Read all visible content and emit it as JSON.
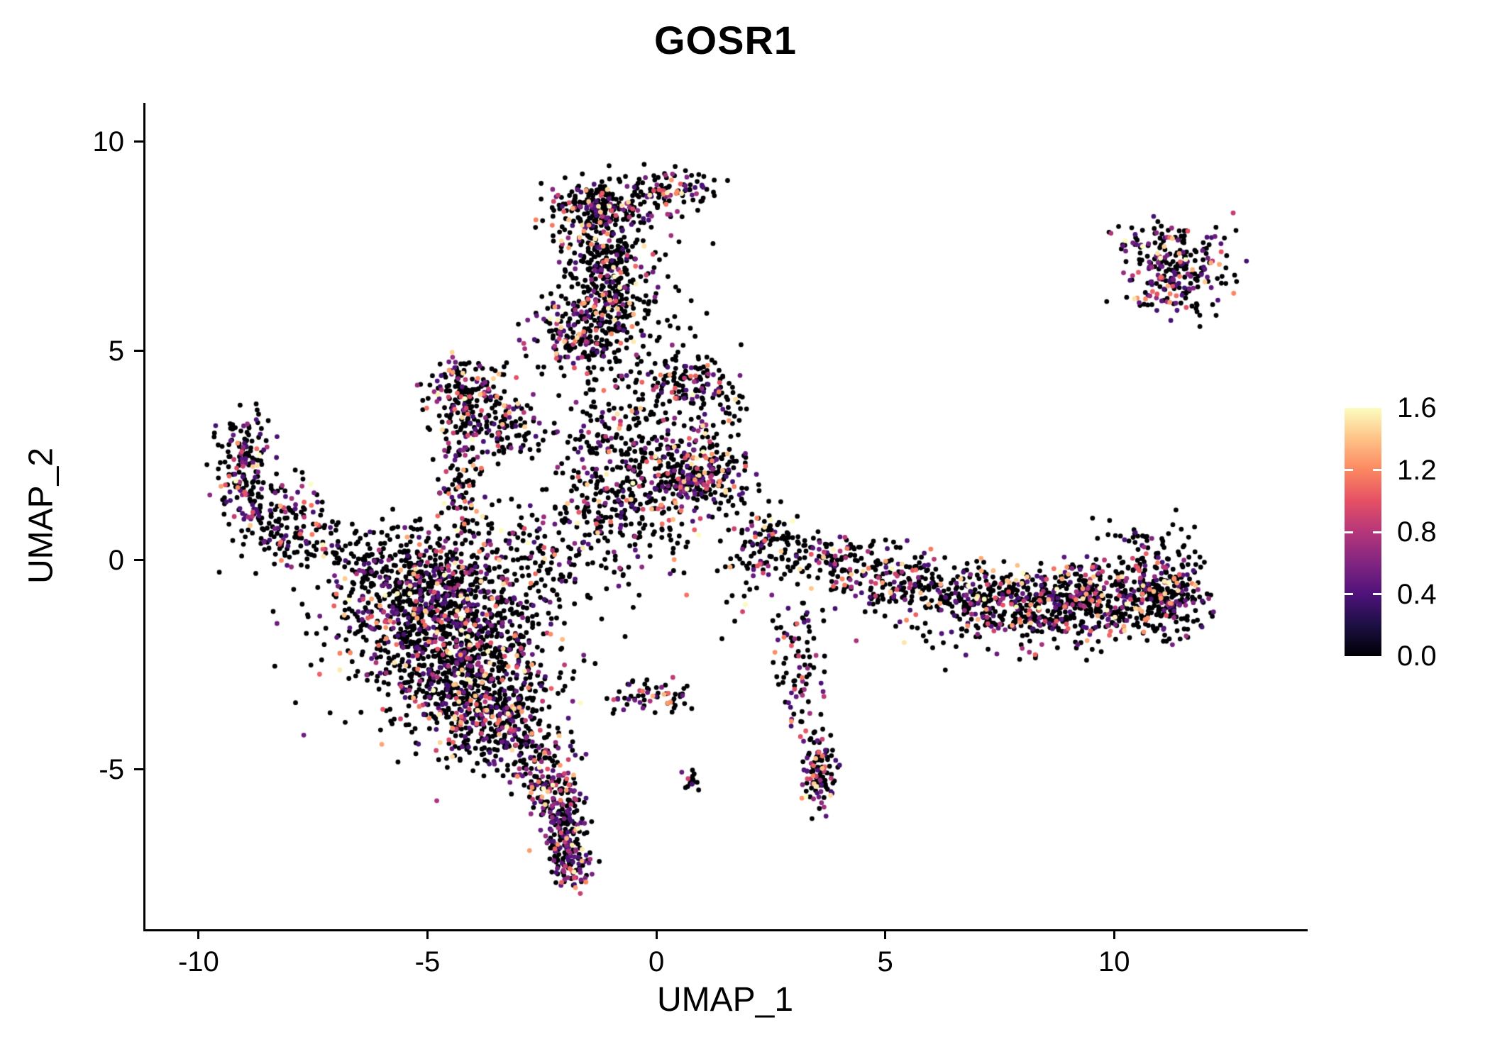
{
  "title": "GOSR1",
  "axes": {
    "x_label": "UMAP_1",
    "y_label": "UMAP_2",
    "x_ticks": [
      -10,
      -5,
      0,
      5,
      10
    ],
    "y_ticks": [
      -5,
      0,
      5,
      10
    ]
  },
  "colorbar": {
    "labels": [
      "1.6",
      "1.2",
      "0.8",
      "0.4",
      "0.0"
    ],
    "values": [
      1.6,
      1.2,
      0.8,
      0.4,
      0.0
    ],
    "tick_values": [
      0.4,
      0.8,
      1.2
    ]
  },
  "chart_data": {
    "type": "scatter",
    "title": "GOSR1",
    "xlabel": "UMAP_1",
    "ylabel": "UMAP_2",
    "x_range": [
      -11.16,
      14.18
    ],
    "y_range": [
      -8.82,
      10.93
    ],
    "grid": false,
    "legend_position": "right",
    "point_radius": 3.4,
    "seed": 12345,
    "color_scale": {
      "min": 0.0,
      "max": 1.6,
      "palette": "magma",
      "stops": [
        {
          "pos": 0.0,
          "color": "#000004"
        },
        {
          "pos": 0.125,
          "color": "#1c1044"
        },
        {
          "pos": 0.25,
          "color": "#4f127b"
        },
        {
          "pos": 0.375,
          "color": "#812581"
        },
        {
          "pos": 0.5,
          "color": "#b5367a"
        },
        {
          "pos": 0.625,
          "color": "#e55064"
        },
        {
          "pos": 0.75,
          "color": "#fb8761"
        },
        {
          "pos": 0.875,
          "color": "#fec287"
        },
        {
          "pos": 1.0,
          "color": "#fcfdbf"
        }
      ]
    },
    "clusters": [
      {
        "name": "top-cap",
        "cx": -1.25,
        "cy": 8.45,
        "sx": 0.55,
        "sy": 0.35,
        "n": 240,
        "pf": 0.3
      },
      {
        "name": "top-arm",
        "cx": 0.35,
        "cy": 8.8,
        "sx": 0.45,
        "sy": 0.25,
        "n": 90,
        "pf": 0.3
      },
      {
        "name": "col-upper",
        "cx": -1.15,
        "cy": 7.0,
        "sx": 0.45,
        "sy": 0.7,
        "n": 260,
        "pf": 0.3
      },
      {
        "name": "col-lower",
        "cx": -1.5,
        "cy": 5.4,
        "sx": 0.55,
        "sy": 0.55,
        "n": 260,
        "pf": 0.32
      },
      {
        "name": "col-right-sparse",
        "cx": -0.2,
        "cy": 6.4,
        "sx": 0.55,
        "sy": 0.9,
        "n": 70,
        "pf": 0.25
      },
      {
        "name": "topright",
        "cx": 11.35,
        "cy": 6.9,
        "sx": 0.55,
        "sy": 0.5,
        "n": 230,
        "pf": 0.4
      },
      {
        "name": "topright-fringe",
        "cx": 11.0,
        "cy": 7.7,
        "sx": 0.6,
        "sy": 0.25,
        "n": 30,
        "pf": 0.3
      },
      {
        "name": "left-vert",
        "cx": -9.0,
        "cy": 2.3,
        "sx": 0.3,
        "sy": 0.75,
        "n": 150,
        "pf": 0.32
      },
      {
        "name": "left-elbow",
        "cx": -8.3,
        "cy": 1.1,
        "sx": 0.5,
        "sy": 0.45,
        "n": 130,
        "pf": 0.3
      },
      {
        "name": "left-trail",
        "cx": -7.3,
        "cy": 0.35,
        "sx": 0.65,
        "sy": 0.35,
        "n": 70,
        "pf": 0.25
      },
      {
        "name": "main-1",
        "cx": -4.9,
        "cy": -1.1,
        "sx": 1.05,
        "sy": 0.75,
        "n": 650,
        "pf": 0.3
      },
      {
        "name": "main-2",
        "cx": -4.2,
        "cy": -2.7,
        "sx": 0.95,
        "sy": 0.75,
        "n": 600,
        "pf": 0.3
      },
      {
        "name": "main-3",
        "cx": -3.5,
        "cy": -4.0,
        "sx": 0.6,
        "sy": 0.5,
        "n": 260,
        "pf": 0.32
      },
      {
        "name": "main-top",
        "cx": -4.9,
        "cy": 0.0,
        "sx": 1.3,
        "sy": 0.5,
        "n": 240,
        "pf": 0.25
      },
      {
        "name": "main-halo",
        "cx": -4.4,
        "cy": -1.9,
        "sx": 1.9,
        "sy": 1.4,
        "n": 180,
        "pf": 0.22
      },
      {
        "name": "tri-1",
        "cx": -4.2,
        "cy": 4.2,
        "sx": 0.5,
        "sy": 0.3,
        "n": 120,
        "pf": 0.3
      },
      {
        "name": "tri-2",
        "cx": -3.85,
        "cy": 3.45,
        "sx": 0.6,
        "sy": 0.45,
        "n": 140,
        "pf": 0.3
      },
      {
        "name": "tri-trail",
        "cx": -4.3,
        "cy": 2.1,
        "sx": 0.22,
        "sy": 0.75,
        "n": 80,
        "pf": 0.3
      },
      {
        "name": "tri-tip",
        "cx": -3.0,
        "cy": 3.0,
        "sx": 0.45,
        "sy": 0.4,
        "n": 50,
        "pf": 0.28
      },
      {
        "name": "ctr-top",
        "cx": 0.6,
        "cy": 4.25,
        "sx": 0.45,
        "sy": 0.35,
        "n": 120,
        "pf": 0.3
      },
      {
        "name": "ctr-right",
        "cx": 0.95,
        "cy": 1.95,
        "sx": 0.5,
        "sy": 0.45,
        "n": 220,
        "pf": 0.38
      },
      {
        "name": "ctr-mid",
        "cx": -0.3,
        "cy": 1.7,
        "sx": 0.8,
        "sy": 0.75,
        "n": 260,
        "pf": 0.28
      },
      {
        "name": "ctr-upper",
        "cx": -0.7,
        "cy": 3.0,
        "sx": 0.65,
        "sy": 0.8,
        "n": 150,
        "pf": 0.25
      },
      {
        "name": "ctr-bridge",
        "cx": -1.8,
        "cy": 0.4,
        "sx": 1.0,
        "sy": 0.75,
        "n": 160,
        "pf": 0.25
      },
      {
        "name": "ctr-edge",
        "cx": 1.3,
        "cy": 3.3,
        "sx": 0.35,
        "sy": 0.7,
        "n": 60,
        "pf": 0.28
      },
      {
        "name": "tail-1",
        "cx": -2.4,
        "cy": -5.2,
        "sx": 0.35,
        "sy": 0.45,
        "n": 140,
        "pf": 0.38
      },
      {
        "name": "tail-2",
        "cx": -2.0,
        "cy": -6.5,
        "sx": 0.28,
        "sy": 0.55,
        "n": 170,
        "pf": 0.42
      },
      {
        "name": "tail-tip",
        "cx": -1.85,
        "cy": -7.3,
        "sx": 0.22,
        "sy": 0.25,
        "n": 60,
        "pf": 0.45
      },
      {
        "name": "line-low",
        "cx": -0.2,
        "cy": -3.3,
        "sx": 0.65,
        "sy": 0.22,
        "n": 60,
        "pf": 0.3
      },
      {
        "name": "band-1",
        "cx": 2.6,
        "cy": 0.45,
        "sx": 0.45,
        "sy": 0.4,
        "n": 90,
        "pf": 0.3
      },
      {
        "name": "band-2",
        "cx": 3.8,
        "cy": -0.05,
        "sx": 0.6,
        "sy": 0.35,
        "n": 120,
        "pf": 0.3
      },
      {
        "name": "band-3",
        "cx": 5.2,
        "cy": -0.5,
        "sx": 0.7,
        "sy": 0.35,
        "n": 130,
        "pf": 0.3
      },
      {
        "name": "band-4",
        "cx": 6.6,
        "cy": -0.8,
        "sx": 0.7,
        "sy": 0.35,
        "n": 150,
        "pf": 0.3
      },
      {
        "name": "band-5",
        "cx": 8.3,
        "cy": -1.0,
        "sx": 0.8,
        "sy": 0.45,
        "n": 330,
        "pf": 0.33
      },
      {
        "name": "band-6",
        "cx": 9.9,
        "cy": -0.95,
        "sx": 0.8,
        "sy": 0.45,
        "n": 330,
        "pf": 0.33
      },
      {
        "name": "band-end",
        "cx": 11.2,
        "cy": -0.8,
        "sx": 0.4,
        "sy": 0.5,
        "n": 200,
        "pf": 0.35
      },
      {
        "name": "band-top",
        "cx": 10.8,
        "cy": 0.3,
        "sx": 0.55,
        "sy": 0.4,
        "n": 50,
        "pf": 0.25
      },
      {
        "name": "band-below",
        "cx": 7.6,
        "cy": -1.9,
        "sx": 1.5,
        "sy": 0.35,
        "n": 50,
        "pf": 0.25
      },
      {
        "name": "spur-dense",
        "cx": 3.55,
        "cy": -5.0,
        "sx": 0.18,
        "sy": 0.5,
        "n": 110,
        "pf": 0.45
      },
      {
        "name": "spur-mid",
        "cx": 3.2,
        "cy": -2.9,
        "sx": 0.25,
        "sy": 0.55,
        "n": 55,
        "pf": 0.35
      },
      {
        "name": "spur-top",
        "cx": 3.0,
        "cy": -1.75,
        "sx": 0.3,
        "sy": 0.4,
        "n": 30,
        "pf": 0.3
      },
      {
        "name": "dot-small",
        "cx": 0.78,
        "cy": -5.3,
        "sx": 0.1,
        "sy": 0.13,
        "n": 14,
        "pf": 0.25
      },
      {
        "name": "bridge-sparse",
        "cx": 1.9,
        "cy": -0.1,
        "sx": 0.5,
        "sy": 0.7,
        "n": 30,
        "pf": 0.25
      }
    ],
    "singles": [
      {
        "x": 12.6,
        "y": 8.3,
        "v": 0.85
      },
      {
        "x": 2.95,
        "y": -3.85,
        "v": 1.25
      },
      {
        "x": -6.95,
        "y": 0.9,
        "v": 0
      },
      {
        "x": 11.35,
        "y": 1.2,
        "v": 0
      },
      {
        "x": 9.9,
        "y": 0.95,
        "v": 0
      },
      {
        "x": 1.7,
        "y": 0.75,
        "v": 0.9
      },
      {
        "x": -2.5,
        "y": 4.45,
        "v": 0
      },
      {
        "x": 0.3,
        "y": 5.6,
        "v": 0
      },
      {
        "x": 1.1,
        "y": 5.9,
        "v": 0
      },
      {
        "x": -1.8,
        "y": -7.45,
        "v": 1.55
      },
      {
        "x": 1.85,
        "y": 5.15,
        "v": 0
      },
      {
        "x": -7.6,
        "y": 0.15,
        "v": 0
      }
    ]
  }
}
